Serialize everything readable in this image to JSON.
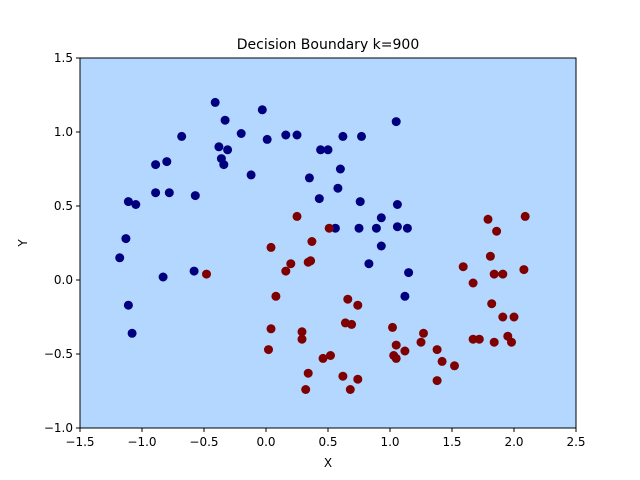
{
  "chart_data": {
    "type": "scatter",
    "title": "Decision Boundary k=900",
    "xlabel": "X",
    "ylabel": "Y",
    "xlim": [
      -1.5,
      2.5
    ],
    "ylim": [
      -1.0,
      1.5
    ],
    "xticks": [
      -1.5,
      -1.0,
      -0.5,
      0.0,
      0.5,
      1.0,
      1.5,
      2.0,
      2.5
    ],
    "yticks": [
      -1.0,
      -0.5,
      0.0,
      0.5,
      1.0,
      1.5
    ],
    "xtick_labels": [
      "−1.5",
      "−1.0",
      "−0.5",
      "0.0",
      "0.5",
      "1.0",
      "1.5",
      "2.0",
      "2.5"
    ],
    "ytick_labels": [
      "−1.0",
      "−0.5",
      "0.0",
      "0.5",
      "1.0",
      "1.5"
    ],
    "grid": false,
    "background_color": "#b3d7ff",
    "series": [
      {
        "color": "#00007f",
        "points": [
          [
            -0.41,
            1.2
          ],
          [
            -0.03,
            1.15
          ],
          [
            -0.33,
            1.08
          ],
          [
            1.05,
            1.07
          ],
          [
            -0.2,
            0.99
          ],
          [
            -0.68,
            0.97
          ],
          [
            0.16,
            0.98
          ],
          [
            0.25,
            0.98
          ],
          [
            0.62,
            0.97
          ],
          [
            0.77,
            0.97
          ],
          [
            0.01,
            0.95
          ],
          [
            -0.38,
            0.9
          ],
          [
            -0.31,
            0.88
          ],
          [
            0.44,
            0.88
          ],
          [
            0.5,
            0.88
          ],
          [
            -0.36,
            0.82
          ],
          [
            -0.8,
            0.8
          ],
          [
            -0.89,
            0.78
          ],
          [
            -0.34,
            0.78
          ],
          [
            0.6,
            0.75
          ],
          [
            -0.12,
            0.71
          ],
          [
            0.35,
            0.69
          ],
          [
            0.58,
            0.62
          ],
          [
            -0.89,
            0.59
          ],
          [
            -0.78,
            0.59
          ],
          [
            -0.57,
            0.57
          ],
          [
            0.43,
            0.55
          ],
          [
            -1.11,
            0.53
          ],
          [
            0.76,
            0.53
          ],
          [
            -1.05,
            0.51
          ],
          [
            1.06,
            0.51
          ],
          [
            0.93,
            0.42
          ],
          [
            1.06,
            0.36
          ],
          [
            0.56,
            0.35
          ],
          [
            0.75,
            0.35
          ],
          [
            0.89,
            0.35
          ],
          [
            1.14,
            0.35
          ],
          [
            -1.13,
            0.28
          ],
          [
            0.93,
            0.23
          ],
          [
            -1.18,
            0.15
          ],
          [
            0.83,
            0.11
          ],
          [
            -0.58,
            0.06
          ],
          [
            1.15,
            0.05
          ],
          [
            -0.83,
            0.02
          ],
          [
            1.12,
            -0.11
          ],
          [
            -1.11,
            -0.17
          ],
          [
            -1.08,
            -0.36
          ]
        ]
      },
      {
        "color": "#7f0000",
        "points": [
          [
            2.09,
            0.43
          ],
          [
            0.25,
            0.43
          ],
          [
            1.79,
            0.41
          ],
          [
            0.51,
            0.35
          ],
          [
            1.86,
            0.33
          ],
          [
            0.37,
            0.26
          ],
          [
            0.04,
            0.22
          ],
          [
            1.81,
            0.16
          ],
          [
            0.36,
            0.13
          ],
          [
            0.34,
            0.12
          ],
          [
            0.2,
            0.11
          ],
          [
            1.59,
            0.09
          ],
          [
            2.08,
            0.07
          ],
          [
            0.16,
            0.06
          ],
          [
            -0.48,
            0.04
          ],
          [
            1.84,
            0.04
          ],
          [
            1.91,
            0.04
          ],
          [
            1.67,
            -0.02
          ],
          [
            0.08,
            -0.11
          ],
          [
            0.66,
            -0.13
          ],
          [
            1.82,
            -0.16
          ],
          [
            0.74,
            -0.17
          ],
          [
            1.91,
            -0.25
          ],
          [
            2.0,
            -0.25
          ],
          [
            0.64,
            -0.29
          ],
          [
            0.69,
            -0.3
          ],
          [
            1.02,
            -0.32
          ],
          [
            0.04,
            -0.33
          ],
          [
            0.29,
            -0.35
          ],
          [
            1.27,
            -0.36
          ],
          [
            1.95,
            -0.38
          ],
          [
            1.67,
            -0.4
          ],
          [
            1.72,
            -0.4
          ],
          [
            0.29,
            -0.4
          ],
          [
            1.25,
            -0.42
          ],
          [
            1.84,
            -0.42
          ],
          [
            1.98,
            -0.42
          ],
          [
            1.05,
            -0.44
          ],
          [
            1.38,
            -0.47
          ],
          [
            0.02,
            -0.47
          ],
          [
            1.12,
            -0.48
          ],
          [
            1.03,
            -0.51
          ],
          [
            0.52,
            -0.51
          ],
          [
            1.05,
            -0.53
          ],
          [
            0.46,
            -0.53
          ],
          [
            1.42,
            -0.55
          ],
          [
            1.52,
            -0.58
          ],
          [
            0.34,
            -0.63
          ],
          [
            0.62,
            -0.65
          ],
          [
            0.74,
            -0.67
          ],
          [
            1.38,
            -0.68
          ],
          [
            0.32,
            -0.74
          ],
          [
            0.68,
            -0.74
          ]
        ]
      }
    ]
  }
}
